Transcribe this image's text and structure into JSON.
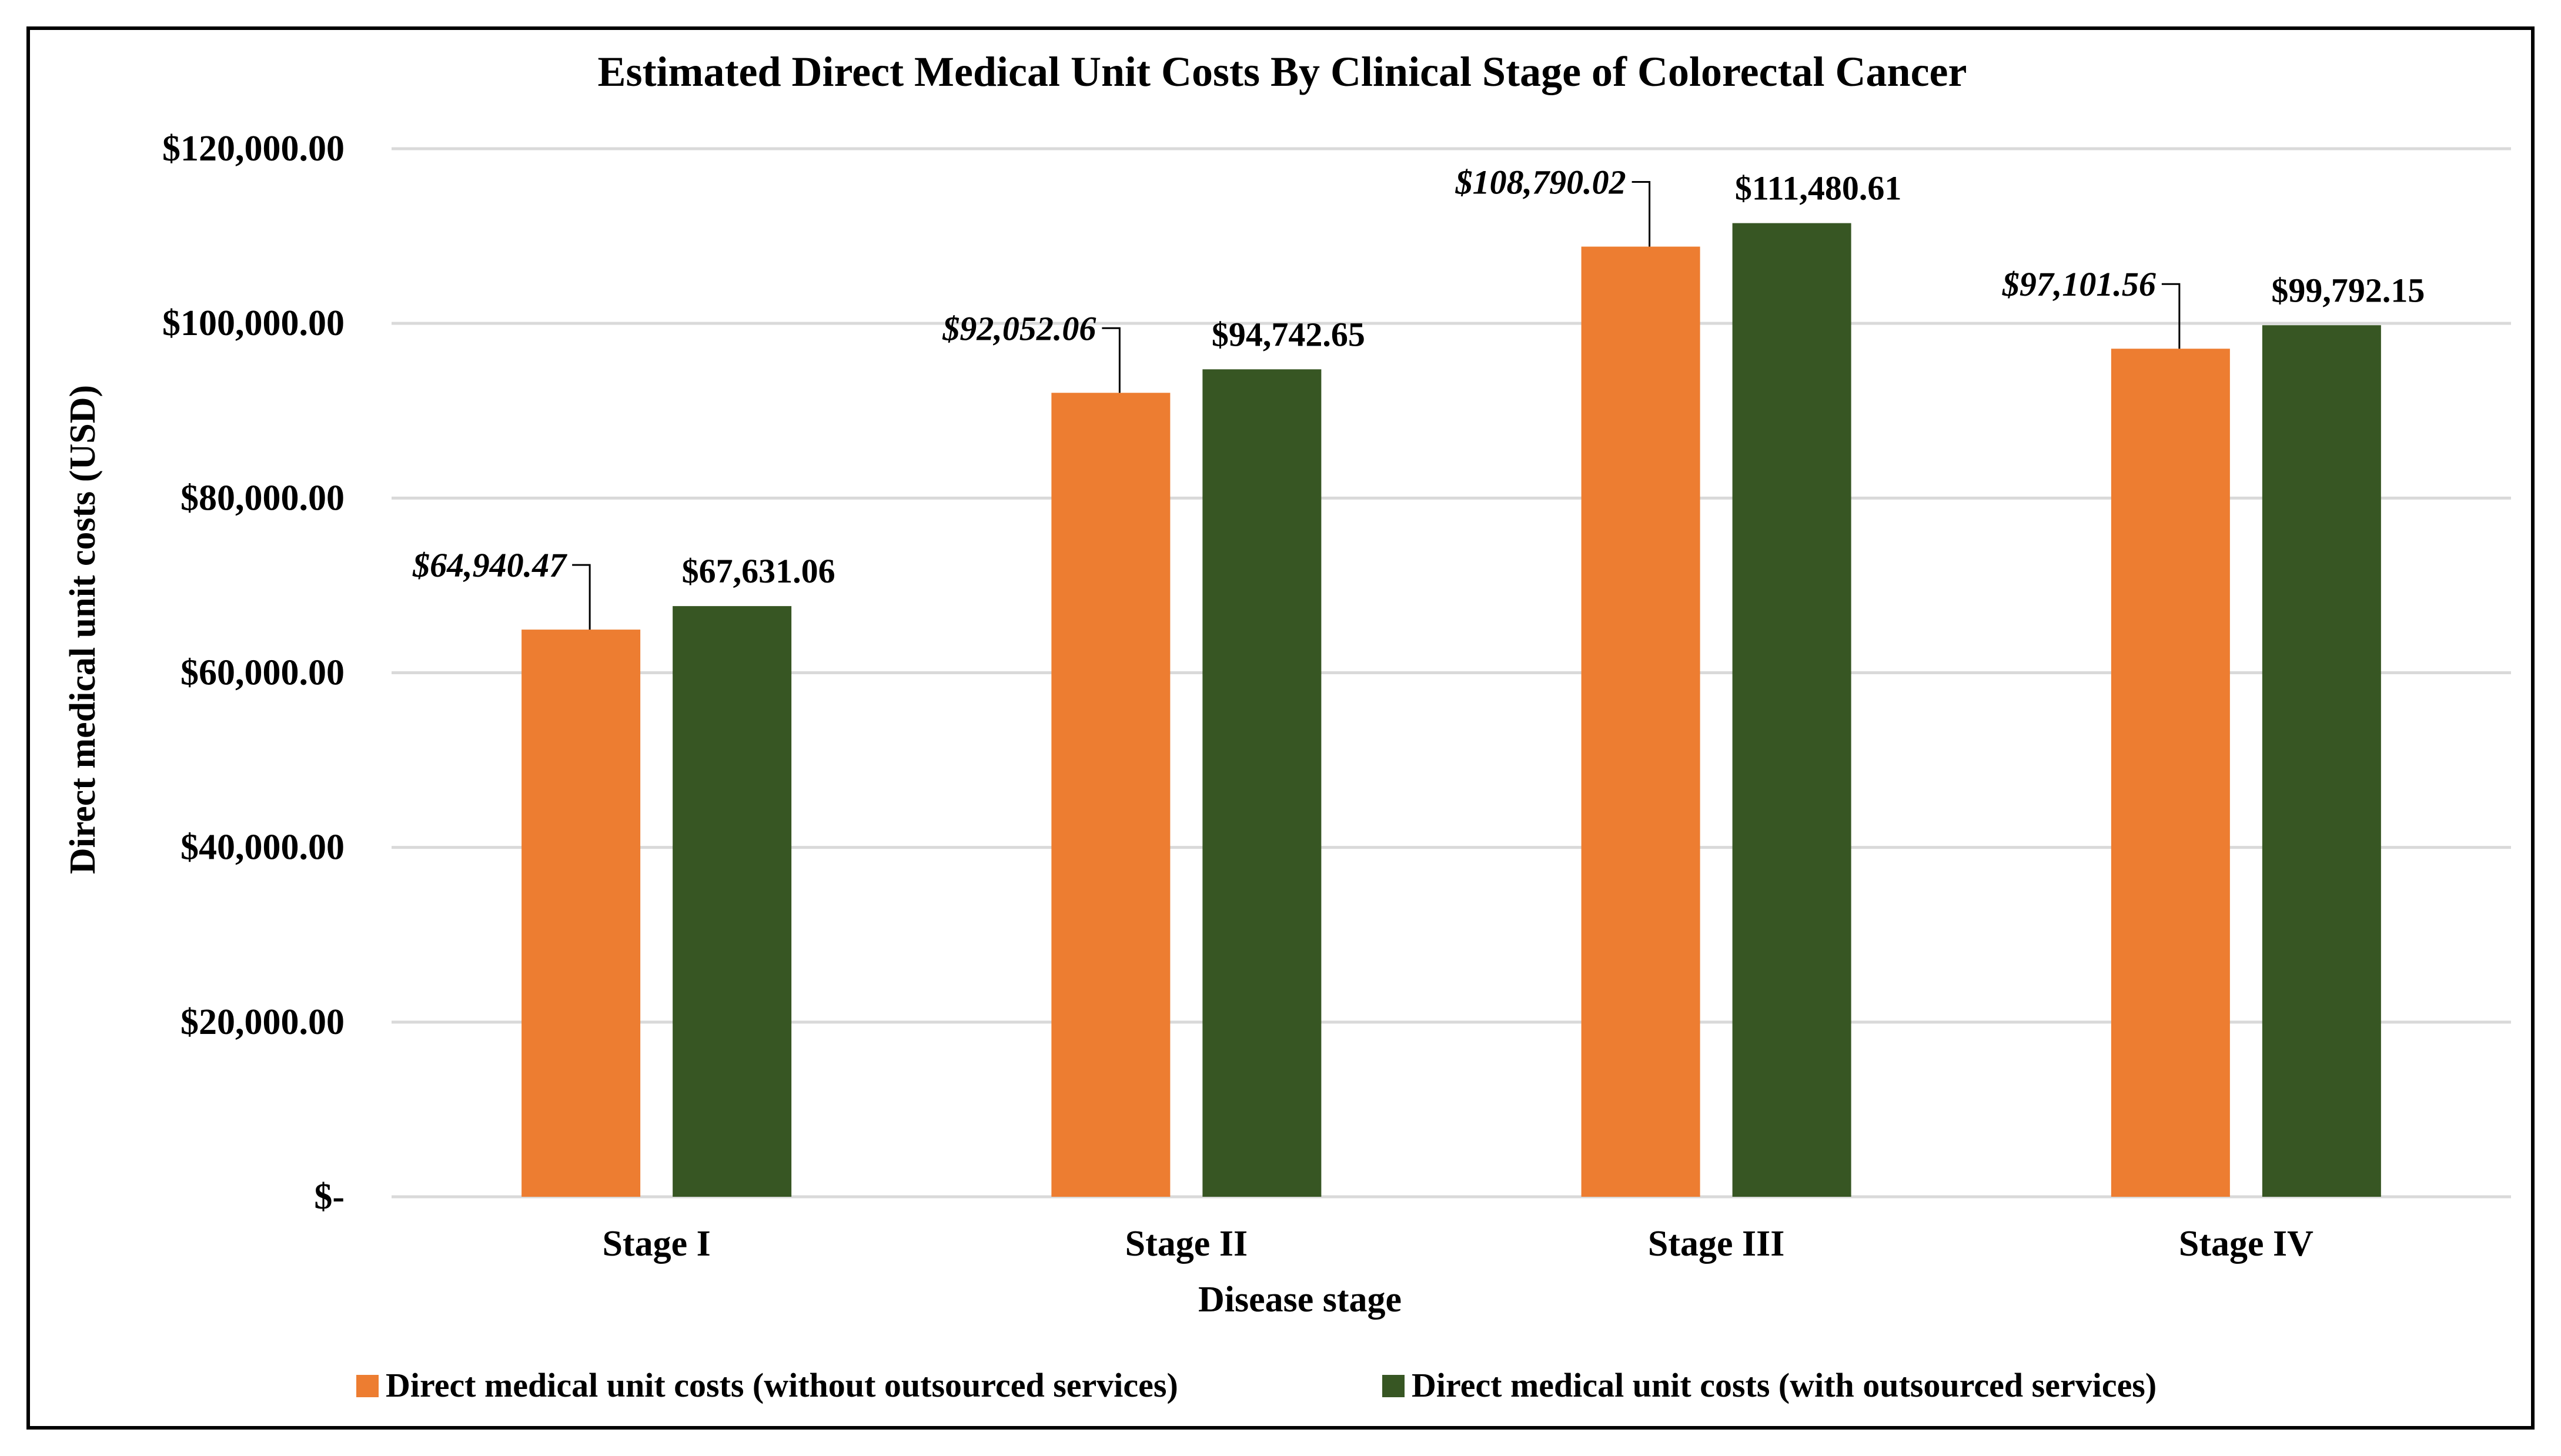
{
  "chart_data": {
    "type": "bar",
    "title": "Estimated Direct Medical Unit Costs By Clinical Stage of Colorectal Cancer",
    "xlabel": "Disease stage",
    "ylabel": "Direct medical unit costs (USD)",
    "categories": [
      "Stage I",
      "Stage II",
      "Stage III",
      "Stage IV"
    ],
    "ylim": [
      0,
      120000
    ],
    "yticks": [
      0,
      20000,
      40000,
      60000,
      80000,
      100000,
      120000
    ],
    "ytick_labels": [
      "$-",
      "$20,000.00",
      "$40,000.00",
      "$60,000.00",
      "$80,000.00",
      "$100,000.00",
      "$120,000.00"
    ],
    "grid": true,
    "legend_position": "bottom",
    "series": [
      {
        "name": "Direct medical unit costs (without outsourced services)",
        "color": "#ED7D31",
        "label_style": "italic",
        "values": [
          64940.47,
          92052.06,
          108790.02,
          97101.56
        ],
        "labels": [
          "$64,940.47",
          "$92,052.06",
          "$108,790.02",
          "$97,101.56"
        ]
      },
      {
        "name": "Direct medical unit costs (with outsourced services)",
        "color": "#375623",
        "label_style": "normal",
        "values": [
          67631.06,
          94742.65,
          111480.61,
          99792.15
        ],
        "labels": [
          "$67,631.06",
          "$94,742.65",
          "$111,480.61",
          "$99,792.15"
        ]
      }
    ]
  }
}
